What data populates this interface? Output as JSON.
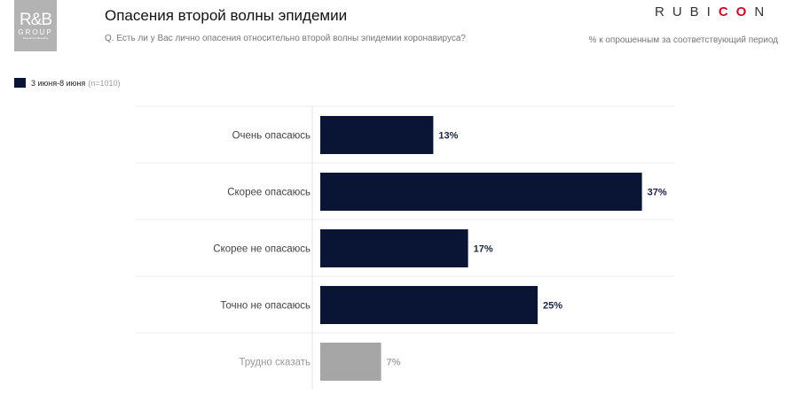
{
  "header": {
    "logo_left": {
      "line1": "R&B",
      "line2": "GROUP",
      "line3": "Research & Branding"
    },
    "title": "Опасения второй волны эпидемии",
    "subtitle": "Q. Есть ли у Вас лично опасения относительно второй волны эпидемии коронавируса?",
    "logo_right": {
      "part1": "RUBI",
      "part2": "CO",
      "part3": "N"
    },
    "note": "% к опрошенным за соответствующий период"
  },
  "legend": {
    "label": "3 июня-8 июня",
    "n": "(n=1010)"
  },
  "colors": {
    "primary": "#0a1535",
    "muted": "#a6a6a6",
    "accent": "#c0102a"
  },
  "chart_data": {
    "type": "bar",
    "orientation": "horizontal",
    "categories": [
      "Очень опасаюсь",
      "Скорее опасаюсь",
      "Скорее не опасаюсь",
      "Точно не опасаюсь",
      "Трудно сказать"
    ],
    "series": [
      {
        "name": "3 июня-8 июня",
        "values": [
          13,
          37,
          17,
          25,
          7
        ]
      }
    ],
    "data_labels": [
      "13%",
      "37%",
      "17%",
      "25%",
      "7%"
    ],
    "highlight": [
      false,
      false,
      false,
      false,
      true
    ],
    "xlim": [
      0,
      40
    ],
    "grid": true
  }
}
